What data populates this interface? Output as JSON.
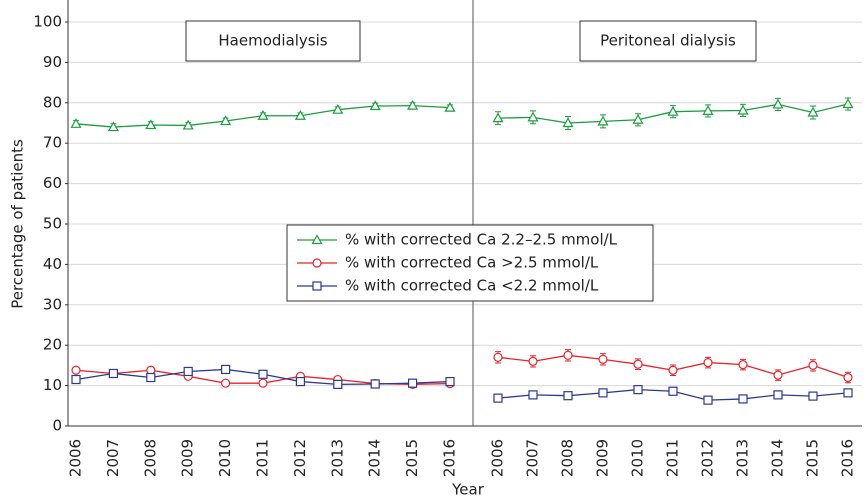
{
  "chart_data": {
    "type": "line",
    "ylabel": "Percentage of patients",
    "xlabel": "Year",
    "ylim": [
      0,
      100
    ],
    "yticks": [
      0,
      10,
      20,
      30,
      40,
      50,
      60,
      70,
      80,
      90,
      100
    ],
    "grid": true,
    "legend": "center",
    "categories": [
      "2006",
      "2007",
      "2008",
      "2009",
      "2010",
      "2011",
      "2012",
      "2013",
      "2014",
      "2015",
      "2016"
    ],
    "series": [
      {
        "name": "% with corrected Ca 2.2–2.5 mmol/L",
        "color": "#1a9e3e",
        "marker": "triangle"
      },
      {
        "name": "% with corrected Ca >2.5 mmol/L",
        "color": "#e8232a",
        "marker": "circle"
      },
      {
        "name": "% with corrected Ca <2.2 mmol/L",
        "color": "#2b3990",
        "marker": "square"
      }
    ],
    "panels": [
      {
        "title": "Haemodialysis",
        "series": [
          {
            "values": [
              74.8,
              74.0,
              74.5,
              74.4,
              75.5,
              76.8,
              76.8,
              78.3,
              79.2,
              79.3,
              78.8
            ],
            "errors": [
              0.8,
              0.8,
              0.8,
              0.7,
              0.7,
              0.7,
              0.7,
              0.7,
              0.7,
              0.7,
              0.7
            ]
          },
          {
            "values": [
              13.8,
              13.0,
              13.8,
              12.3,
              10.6,
              10.6,
              12.3,
              11.5,
              10.5,
              10.3,
              10.5
            ],
            "errors": [
              0.7,
              0.7,
              0.7,
              0.6,
              0.6,
              0.6,
              0.6,
              0.6,
              0.5,
              0.5,
              0.5
            ]
          },
          {
            "values": [
              11.5,
              13.0,
              12.0,
              13.5,
              14.0,
              12.8,
              11.0,
              10.3,
              10.4,
              10.6,
              11.0
            ],
            "errors": [
              0.6,
              0.6,
              0.6,
              0.6,
              0.6,
              0.6,
              0.5,
              0.5,
              0.5,
              0.5,
              0.5
            ]
          }
        ]
      },
      {
        "title": "Peritoneal dialysis",
        "series": [
          {
            "values": [
              76.2,
              76.4,
              75.0,
              75.4,
              75.8,
              77.8,
              78.0,
              78.1,
              79.6,
              77.6,
              79.7
            ],
            "errors": [
              1.6,
              1.6,
              1.6,
              1.6,
              1.5,
              1.5,
              1.5,
              1.5,
              1.5,
              1.6,
              1.5
            ]
          },
          {
            "values": [
              17.0,
              16.0,
              17.5,
              16.5,
              15.3,
              13.8,
              15.7,
              15.2,
              12.6,
              15.0,
              12.0
            ],
            "errors": [
              1.4,
              1.4,
              1.4,
              1.4,
              1.3,
              1.3,
              1.3,
              1.3,
              1.3,
              1.4,
              1.3
            ]
          },
          {
            "values": [
              6.9,
              7.7,
              7.5,
              8.2,
              9.0,
              8.6,
              6.4,
              6.7,
              7.7,
              7.4,
              8.2
            ],
            "errors": [
              0.9,
              0.9,
              0.9,
              0.9,
              0.9,
              0.9,
              0.8,
              0.8,
              0.9,
              0.9,
              0.9
            ]
          }
        ]
      }
    ]
  }
}
